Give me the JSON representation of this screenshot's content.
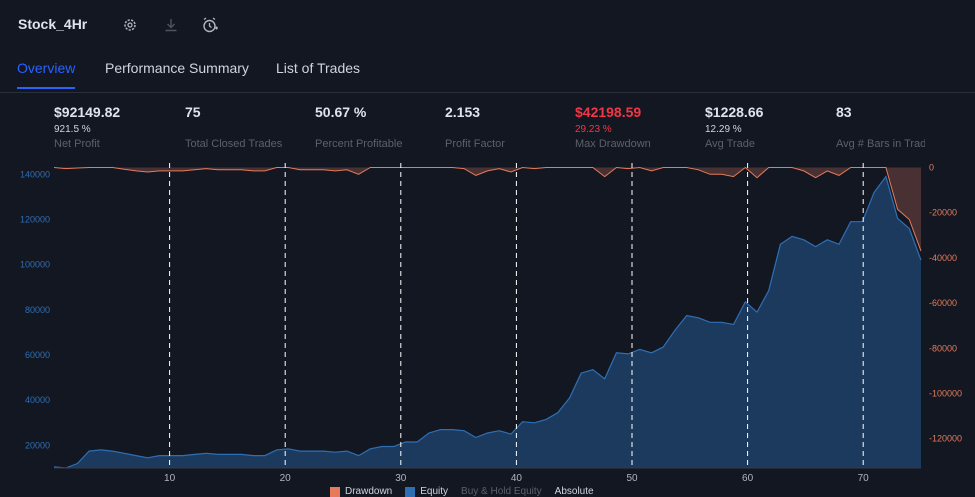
{
  "header": {
    "title": "Stock_4Hr"
  },
  "icons": {
    "settings": "gear-icon",
    "download": "download-icon",
    "alarm": "alarm-add-icon"
  },
  "tabs": [
    {
      "label": "Overview",
      "active": true
    },
    {
      "label": "Performance Summary",
      "active": false
    },
    {
      "label": "List of Trades",
      "active": false
    }
  ],
  "metrics": [
    {
      "value": "$92149.82",
      "sub": "921.5 %",
      "label": "Net Profit"
    },
    {
      "value": "75",
      "sub": "",
      "label": "Total Closed Trades"
    },
    {
      "value": "50.67 %",
      "sub": "",
      "label": "Percent Profitable"
    },
    {
      "value": "2.153",
      "sub": "",
      "label": "Profit Factor"
    },
    {
      "value": "$42198.59",
      "sub": "29.23 %",
      "label": "Max Drawdown",
      "negative": true
    },
    {
      "value": "$1228.66",
      "sub": "12.29 %",
      "label": "Avg Trade"
    },
    {
      "value": "83",
      "sub": "",
      "label": "Avg # Bars in Trad"
    }
  ],
  "colors": {
    "accent": "#2962ff",
    "negative": "#f23645",
    "equity_fill": "#1c3a5e",
    "equity_line": "#2e6fb4",
    "drawdown": "#5b3a3a",
    "drawdown_line": "#e57b5a"
  },
  "chart_data": {
    "type": "area",
    "x_ticks": [
      10,
      20,
      30,
      40,
      50,
      60,
      70
    ],
    "xlim": [
      0,
      75
    ],
    "y_left_ticks": [
      "20000",
      "40000",
      "60000",
      "80000",
      "100000",
      "120000",
      "140000"
    ],
    "y_left_lim": [
      10000,
      145000
    ],
    "y_right_ticks": [
      "0",
      "-20000",
      "-40000",
      "-60000",
      "-80000",
      "-100000",
      "-120000"
    ],
    "y_right_lim": [
      -133000,
      2000
    ],
    "vertical_grid": true,
    "series": [
      {
        "name": "Equity",
        "values": [
          10500,
          10000,
          12000,
          17500,
          18000,
          17500,
          16500,
          15500,
          14500,
          15500,
          15500,
          15500,
          16000,
          16500,
          16000,
          16000,
          16000,
          15500,
          15500,
          18000,
          18500,
          17500,
          17500,
          17500,
          17000,
          17500,
          15500,
          18500,
          19500,
          19500,
          21500,
          21500,
          25500,
          27000,
          27000,
          26500,
          23500,
          25500,
          26500,
          25000,
          30500,
          30000,
          31500,
          34500,
          41000,
          52000,
          53500,
          49500,
          61000,
          60500,
          62500,
          61000,
          63500,
          71000,
          77500,
          76500,
          74500,
          74500,
          73500,
          83500,
          79000,
          88500,
          109000,
          112500,
          111000,
          108000,
          111000,
          109000,
          119000,
          119000,
          132000,
          139000,
          120500,
          116000,
          102000
        ]
      },
      {
        "name": "Drawdown",
        "values": [
          0,
          -500,
          -200,
          0,
          0,
          0,
          -800,
          -1500,
          -2000,
          -1500,
          -1500,
          -1500,
          -1000,
          -500,
          -1000,
          -1000,
          -1000,
          -1500,
          -1500,
          0,
          0,
          -1000,
          -1000,
          -1000,
          -1500,
          -1000,
          -3000,
          0,
          0,
          0,
          0,
          0,
          0,
          0,
          0,
          -500,
          -3500,
          -1500,
          -500,
          -2000,
          0,
          -500,
          0,
          0,
          0,
          0,
          0,
          -4000,
          0,
          -500,
          0,
          -1500,
          0,
          0,
          0,
          -1000,
          -3000,
          -3000,
          -4000,
          0,
          -4500,
          0,
          0,
          0,
          -1500,
          -4500,
          -1500,
          -3500,
          0,
          0,
          0,
          0,
          -18500,
          -23000,
          -37000
        ]
      }
    ],
    "legend": [
      {
        "label": "Drawdown",
        "color": "#e57b5a"
      },
      {
        "label": "Equity",
        "color": "#2e6fb4"
      },
      {
        "label": "Buy & Hold Equity",
        "color": "#5d606b"
      },
      {
        "label": "Absolute",
        "color": "#d1d4dc"
      }
    ]
  }
}
